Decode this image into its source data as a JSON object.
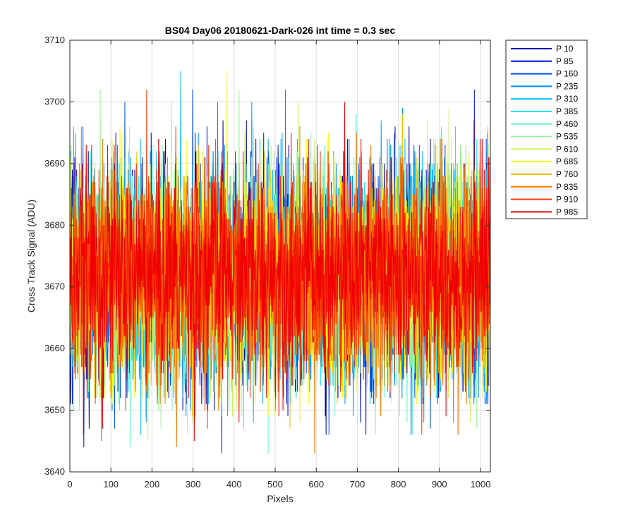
{
  "chart_data": {
    "type": "line",
    "title": "BS04 Day06 20180621-Dark-026 int time = 0.3 sec",
    "xlabel": "Pixels",
    "ylabel": "Cross Track Signal (ADU)",
    "xlim": [
      0,
      1024
    ],
    "ylim": [
      3640,
      3710
    ],
    "xticks": [
      0,
      100,
      200,
      300,
      400,
      500,
      600,
      700,
      800,
      900,
      1000
    ],
    "yticks": [
      3640,
      3650,
      3660,
      3670,
      3680,
      3690,
      3700,
      3710
    ],
    "grid": true,
    "legend_position": "outside-right",
    "noise": {
      "mean": 3672,
      "min": 3643,
      "max": 3705,
      "typical_range": [
        3652,
        3694
      ],
      "points_per_series": 1024
    },
    "series": [
      {
        "name": "P 10",
        "color": "#0000AA"
      },
      {
        "name": "P 85",
        "color": "#0010D8"
      },
      {
        "name": "P 160",
        "color": "#0050F0"
      },
      {
        "name": "P 235",
        "color": "#0090F8"
      },
      {
        "name": "P 310",
        "color": "#00B8FF"
      },
      {
        "name": "P 385",
        "color": "#10E8F0"
      },
      {
        "name": "P 460",
        "color": "#70F8C8"
      },
      {
        "name": "P 535",
        "color": "#98F098"
      },
      {
        "name": "P 610",
        "color": "#C8F060"
      },
      {
        "name": "P 685",
        "color": "#F8F800"
      },
      {
        "name": "P 760",
        "color": "#F8C000"
      },
      {
        "name": "P 835",
        "color": "#F87800"
      },
      {
        "name": "P 910",
        "color": "#F83800"
      },
      {
        "name": "P 985",
        "color": "#F00000"
      }
    ]
  }
}
